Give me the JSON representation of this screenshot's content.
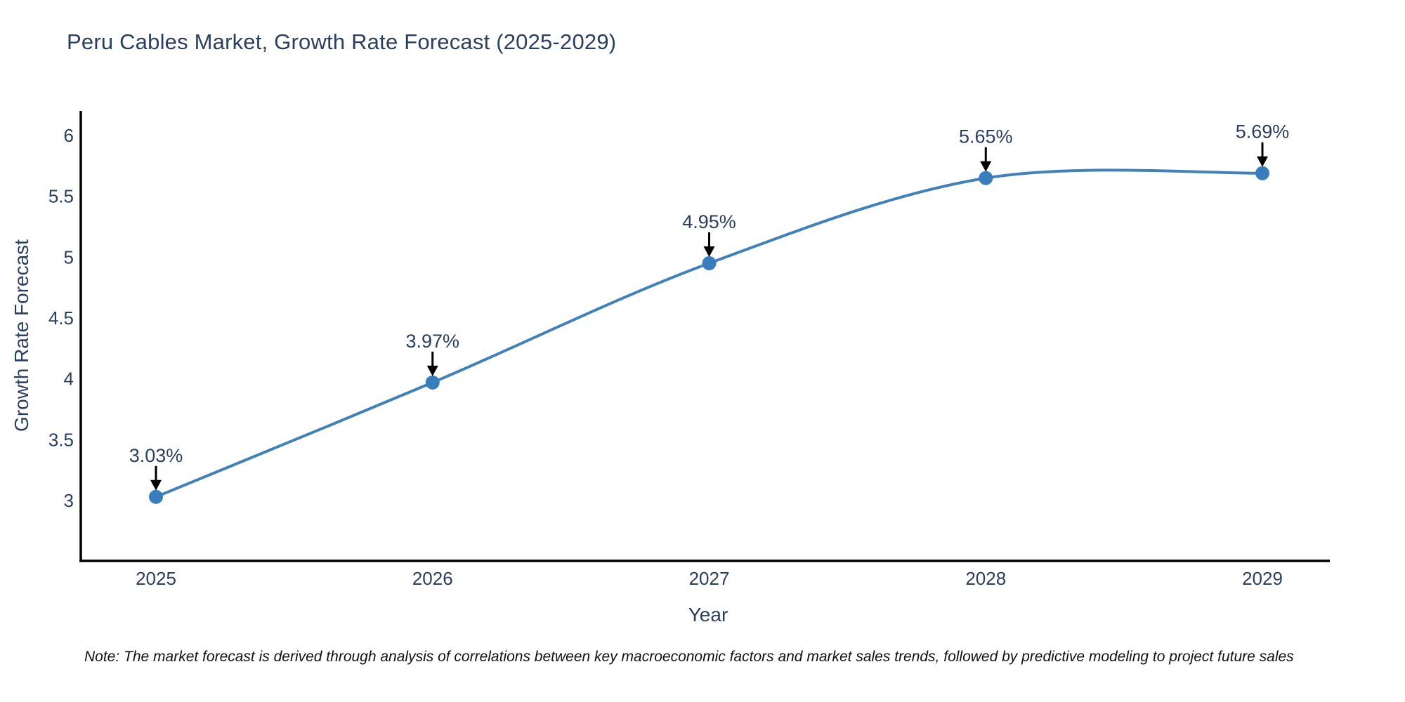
{
  "title": "Peru Cables Market, Growth Rate Forecast (2025-2029)",
  "note": "Note: The market forecast is derived through analysis of correlations between key macroeconomic factors and market sales trends, followed by predictive modeling to project future sales",
  "colors": {
    "line": "#4181b8",
    "marker": "#3a7dbd",
    "text": "#2a3f5f",
    "axis": "#000000",
    "note_text": "#111111",
    "arrow": "#000000"
  },
  "chart_data": {
    "type": "line",
    "title": "Peru Cables Market, Growth Rate Forecast (2025-2029)",
    "xlabel": "Year",
    "ylabel": "Growth Rate Forecast",
    "categories": [
      "2025",
      "2026",
      "2027",
      "2028",
      "2029"
    ],
    "values": [
      3.03,
      3.97,
      4.95,
      5.65,
      5.69
    ],
    "point_labels": [
      "3.03%",
      "3.97%",
      "4.95%",
      "5.65%",
      "5.69%"
    ],
    "ytick_values": [
      3,
      3.5,
      4,
      4.5,
      5,
      5.5,
      6
    ],
    "ylim": [
      2.55,
      6.2
    ],
    "grid": false,
    "legend": false,
    "line_shape": "spline",
    "marker": "circle",
    "annotation_style": "down-arrow"
  }
}
